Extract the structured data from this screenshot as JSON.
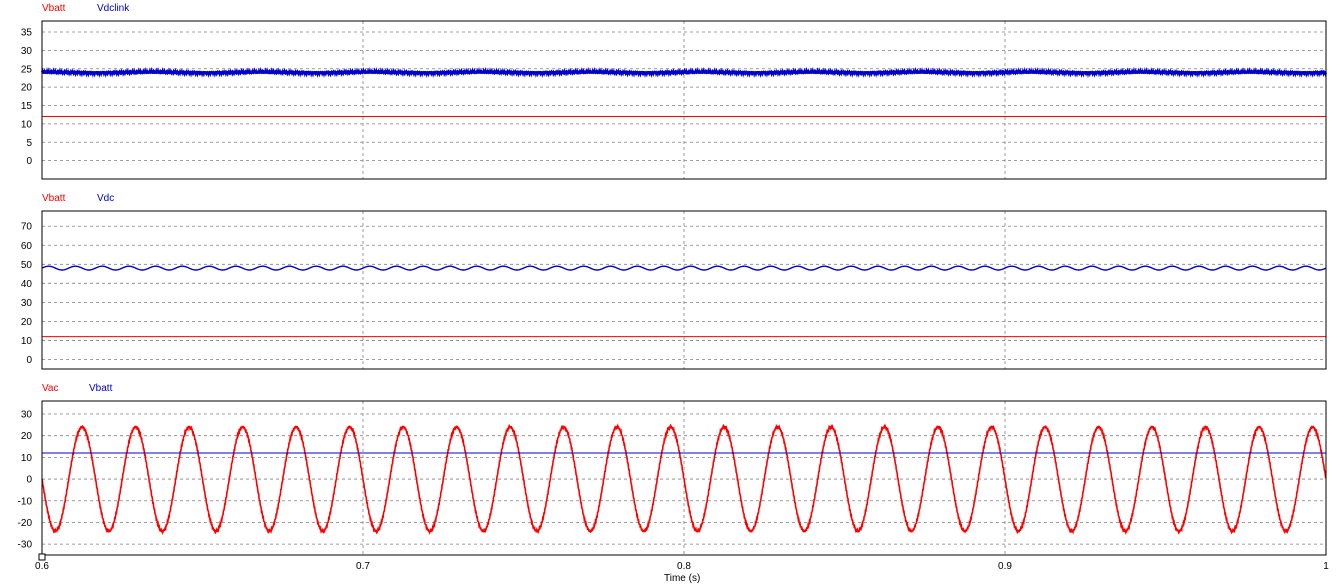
{
  "xlabel": "Time (s)",
  "x_range": [
    0.6,
    1.0
  ],
  "x_ticks": [
    0.6,
    0.7,
    0.8,
    0.9,
    1
  ],
  "x_tick_labels": [
    "0.6",
    "0.7",
    "0.8",
    "0.9",
    "1"
  ],
  "colors": {
    "red": "#ff0000",
    "blue": "#0000cc",
    "grid": "#808080",
    "frame": "#000000"
  },
  "chart_data": [
    {
      "type": "line",
      "legend": [
        "Vbatt",
        "Vdclink"
      ],
      "ylim": [
        -5,
        38
      ],
      "yticks": [
        0,
        5,
        10,
        15,
        20,
        25,
        30,
        35
      ],
      "grid": true,
      "series": [
        {
          "name": "Vbatt",
          "color": "#ff0000",
          "shape": "constant",
          "value": 12
        },
        {
          "name": "Vdclink",
          "color": "#0000cc",
          "shape": "constant_with_ripple",
          "value": 24,
          "ripple_pp": 0.8,
          "ripple_freq_hz": 2000
        }
      ]
    },
    {
      "type": "line",
      "legend": [
        "Vbatt",
        "Vdc"
      ],
      "ylim": [
        -5,
        78
      ],
      "yticks": [
        0,
        10,
        20,
        30,
        40,
        50,
        60,
        70
      ],
      "grid": true,
      "series": [
        {
          "name": "Vbatt",
          "color": "#ff0000",
          "shape": "constant",
          "value": 12
        },
        {
          "name": "Vdc",
          "color": "#0000cc",
          "shape": "dc_with_sine_ripple",
          "value": 48,
          "ripple_pp": 2,
          "ripple_freq_hz": 120
        }
      ]
    },
    {
      "type": "line",
      "legend": [
        "Vac",
        "Vbatt"
      ],
      "ylim": [
        -35,
        36
      ],
      "yticks": [
        -30,
        -20,
        -10,
        0,
        10,
        20,
        30
      ],
      "grid": true,
      "series": [
        {
          "name": "Vac",
          "color": "#ff0000",
          "shape": "sine",
          "amplitude": 24,
          "freq_hz": 60
        },
        {
          "name": "Vbatt",
          "color": "#0000cc",
          "shape": "constant",
          "value": 12
        }
      ]
    }
  ]
}
